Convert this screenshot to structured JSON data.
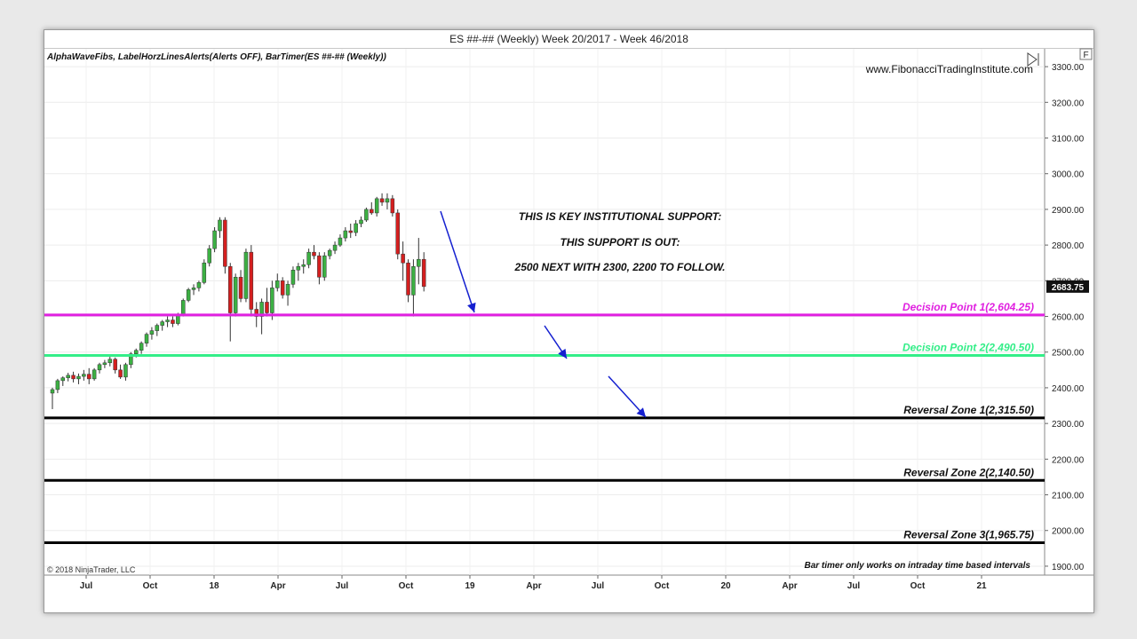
{
  "window": {
    "title": "ES ##-## (Weekly)  Week 20/2017 - Week 46/2018",
    "indicators": "AlphaWaveFibs, LabelHorzLinesAlerts(Alerts OFF), BarTimer(ES ##-## (Weekly))",
    "website": "www.FibonacciTradingInstitute.com",
    "copyright": "© 2018 NinjaTrader, LLC",
    "bar_timer_note": "Bar timer only works on intraday time based intervals",
    "corner_button": "F",
    "current_price_label": "2683.75"
  },
  "chart_data": {
    "type": "candlestick",
    "title": "ES ##-## (Weekly)  Week 20/2017 - Week 46/2018",
    "ylim": [
      1875,
      3350
    ],
    "yticks": [
      "1900.00",
      "2000.00",
      "2100.00",
      "2200.00",
      "2300.00",
      "2400.00",
      "2500.00",
      "2600.00",
      "2700.00",
      "2800.00",
      "2900.00",
      "3000.00",
      "3100.00",
      "3200.00",
      "3300.00"
    ],
    "xtick_labels": [
      "Jul",
      "Oct",
      "18",
      "Apr",
      "Jul",
      "Oct",
      "19",
      "Apr",
      "Jul",
      "Oct",
      "20",
      "Apr",
      "Jul",
      "Oct",
      "21"
    ],
    "grid": true,
    "up_color": "#3cb043",
    "down_color": "#d41f1f",
    "candles": [
      [
        2385,
        2400,
        2340,
        2395
      ],
      [
        2395,
        2425,
        2385,
        2420
      ],
      [
        2420,
        2432,
        2405,
        2428
      ],
      [
        2428,
        2442,
        2418,
        2435
      ],
      [
        2435,
        2445,
        2415,
        2425
      ],
      [
        2425,
        2440,
        2410,
        2432
      ],
      [
        2432,
        2450,
        2420,
        2438
      ],
      [
        2438,
        2455,
        2410,
        2425
      ],
      [
        2425,
        2455,
        2420,
        2450
      ],
      [
        2450,
        2470,
        2440,
        2465
      ],
      [
        2465,
        2478,
        2455,
        2470
      ],
      [
        2470,
        2490,
        2460,
        2480
      ],
      [
        2480,
        2485,
        2440,
        2450
      ],
      [
        2450,
        2465,
        2425,
        2430
      ],
      [
        2430,
        2470,
        2420,
        2465
      ],
      [
        2465,
        2500,
        2455,
        2495
      ],
      [
        2495,
        2510,
        2485,
        2505
      ],
      [
        2505,
        2530,
        2495,
        2525
      ],
      [
        2525,
        2555,
        2515,
        2550
      ],
      [
        2550,
        2570,
        2535,
        2560
      ],
      [
        2560,
        2580,
        2545,
        2575
      ],
      [
        2575,
        2590,
        2560,
        2585
      ],
      [
        2585,
        2600,
        2570,
        2590
      ],
      [
        2590,
        2600,
        2570,
        2580
      ],
      [
        2580,
        2610,
        2575,
        2605
      ],
      [
        2605,
        2650,
        2600,
        2645
      ],
      [
        2645,
        2680,
        2640,
        2675
      ],
      [
        2675,
        2690,
        2660,
        2680
      ],
      [
        2680,
        2700,
        2670,
        2695
      ],
      [
        2695,
        2760,
        2690,
        2750
      ],
      [
        2750,
        2800,
        2740,
        2790
      ],
      [
        2790,
        2850,
        2780,
        2840
      ],
      [
        2840,
        2878,
        2820,
        2870
      ],
      [
        2870,
        2878,
        2720,
        2740
      ],
      [
        2740,
        2750,
        2530,
        2610
      ],
      [
        2610,
        2720,
        2600,
        2710
      ],
      [
        2710,
        2730,
        2640,
        2650
      ],
      [
        2650,
        2790,
        2640,
        2780
      ],
      [
        2780,
        2800,
        2600,
        2620
      ],
      [
        2620,
        2640,
        2570,
        2600
      ],
      [
        2600,
        2650,
        2550,
        2640
      ],
      [
        2640,
        2680,
        2600,
        2610
      ],
      [
        2610,
        2700,
        2590,
        2680
      ],
      [
        2680,
        2720,
        2670,
        2700
      ],
      [
        2700,
        2710,
        2650,
        2660
      ],
      [
        2660,
        2700,
        2630,
        2690
      ],
      [
        2690,
        2740,
        2680,
        2730
      ],
      [
        2730,
        2750,
        2700,
        2740
      ],
      [
        2740,
        2760,
        2720,
        2745
      ],
      [
        2745,
        2790,
        2735,
        2780
      ],
      [
        2780,
        2800,
        2760,
        2770
      ],
      [
        2770,
        2780,
        2690,
        2710
      ],
      [
        2710,
        2780,
        2700,
        2770
      ],
      [
        2770,
        2790,
        2760,
        2785
      ],
      [
        2785,
        2810,
        2775,
        2800
      ],
      [
        2800,
        2830,
        2795,
        2820
      ],
      [
        2820,
        2850,
        2810,
        2840
      ],
      [
        2840,
        2860,
        2820,
        2835
      ],
      [
        2835,
        2870,
        2825,
        2860
      ],
      [
        2860,
        2880,
        2850,
        2870
      ],
      [
        2870,
        2905,
        2865,
        2900
      ],
      [
        2900,
        2920,
        2885,
        2890
      ],
      [
        2890,
        2935,
        2880,
        2930
      ],
      [
        2930,
        2945,
        2910,
        2920
      ],
      [
        2920,
        2945,
        2900,
        2930
      ],
      [
        2930,
        2940,
        2880,
        2890
      ],
      [
        2890,
        2900,
        2760,
        2775
      ],
      [
        2775,
        2810,
        2700,
        2750
      ],
      [
        2750,
        2760,
        2640,
        2660
      ],
      [
        2660,
        2760,
        2600,
        2740
      ],
      [
        2740,
        2820,
        2690,
        2760
      ],
      [
        2760,
        2780,
        2670,
        2683.75
      ]
    ],
    "horizontal_lines": [
      {
        "value": 2604.25,
        "label": "Decision Point 1(2,604.25)",
        "color": "#e020e0"
      },
      {
        "value": 2490.5,
        "label": "Decision Point 2(2,490.50)",
        "color": "#33ee88"
      },
      {
        "value": 2315.5,
        "label": "Reversal Zone 1(2,315.50)",
        "color": "#000000"
      },
      {
        "value": 2140.5,
        "label": "Reversal  Zone 2(2,140.50)",
        "color": "#000000"
      },
      {
        "value": 1965.75,
        "label": "Reversal Zone 3(1,965.75)",
        "color": "#000000"
      }
    ],
    "annotations": [
      "THIS IS KEY INSTITUTIONAL SUPPORT:",
      "THIS SUPPORT IS OUT:",
      "2500 NEXT WITH 2300, 2200 TO FOLLOW."
    ],
    "arrow_color": "#1520d0"
  }
}
